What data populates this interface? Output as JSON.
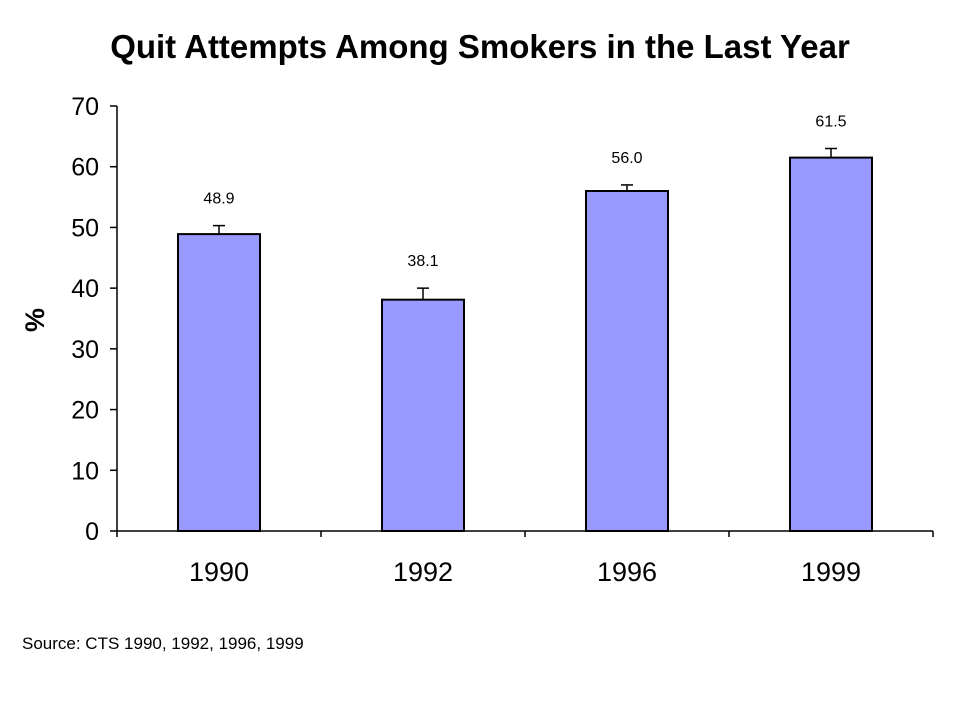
{
  "chart_data": {
    "type": "bar",
    "title": "Quit Attempts Among Smokers in the Last Year",
    "xlabel": "",
    "ylabel": "%",
    "categories": [
      "1990",
      "1992",
      "1996",
      "1999"
    ],
    "values": [
      48.9,
      38.1,
      56.0,
      61.5
    ],
    "value_labels": [
      "48.9",
      "38.1",
      "56.0",
      "61.5"
    ],
    "error_upper": [
      50.3,
      40.0,
      57.0,
      63.0
    ],
    "ylim": [
      0,
      70
    ],
    "yticks": [
      0,
      10,
      20,
      30,
      40,
      50,
      60,
      70
    ],
    "grid": false,
    "legend": "none",
    "colors": {
      "bar_fill": "#9999ff",
      "bar_stroke": "#000000"
    }
  },
  "footer": {
    "source": "Source: CTS 1990, 1992, 1996, 1999"
  }
}
